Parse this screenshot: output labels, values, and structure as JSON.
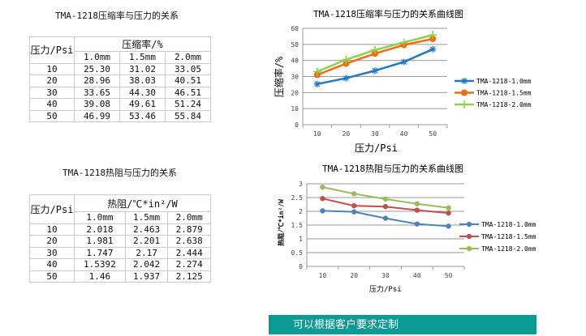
{
  "table1": {
    "title": "TMA-1218压缩率与压力的关系",
    "row_header": "压力/Psi",
    "group_header": "压缩率/%",
    "columns": [
      "1.0mm",
      "1.5mm",
      "2.0mm"
    ],
    "rows": [
      [
        "10",
        "25.30",
        "31.02",
        "33.05"
      ],
      [
        "20",
        "28.96",
        "38.03",
        "40.51"
      ],
      [
        "30",
        "33.65",
        "44.30",
        "46.51"
      ],
      [
        "40",
        "39.08",
        "49.61",
        "51.24"
      ],
      [
        "50",
        "46.99",
        "53.46",
        "55.84"
      ]
    ]
  },
  "table2": {
    "title": "TMA-1218热阻与压力的关系",
    "row_header": "压力/Psi",
    "group_header": "热阻/℃*in²/W",
    "columns": [
      "1.0mm",
      "1.5mm",
      "2.0mm"
    ],
    "rows": [
      [
        "10",
        "2.018",
        "2.463",
        "2.879"
      ],
      [
        "20",
        "1.981",
        "2.201",
        "2.638"
      ],
      [
        "30",
        "1.747",
        "2.17",
        "2.444"
      ],
      [
        "40",
        "1.5392",
        "2.042",
        "2.274"
      ],
      [
        "50",
        "1.46",
        "1.937",
        "2.125"
      ]
    ]
  },
  "chart_data": [
    {
      "type": "line",
      "title": "TMA-1218压缩率与压力的关系曲线图",
      "xlabel": "压力/Psi",
      "ylabel": "压缩率/%",
      "categories": [
        "10",
        "20",
        "30",
        "40",
        "50"
      ],
      "ylim": [
        0,
        60
      ],
      "yticks": [
        "0",
        "10",
        "20",
        "30",
        "40",
        "50",
        "60"
      ],
      "grid": true,
      "legend": "right",
      "series": [
        {
          "name": "TMA-1218-1.0mm",
          "values": [
            25.3,
            28.96,
            33.65,
            39.08,
            46.99
          ],
          "color": "#1f78c8",
          "marker": "asterisk"
        },
        {
          "name": "TMA-1218-1.5mm",
          "values": [
            31.02,
            38.03,
            44.3,
            49.61,
            53.46
          ],
          "color": "#f36c12",
          "marker": "circle"
        },
        {
          "name": "TMA-1218-2.0mm",
          "values": [
            33.05,
            40.51,
            46.51,
            51.24,
            55.84
          ],
          "color": "#8fd14f",
          "marker": "plus"
        }
      ]
    },
    {
      "type": "line",
      "title": "TMA-1218热阻与压力的关系曲线图",
      "xlabel": "压力/Psi",
      "ylabel": "热阻/℃*in²/W",
      "categories": [
        "10",
        "20",
        "30",
        "40",
        "50"
      ],
      "ylim": [
        0,
        3
      ],
      "yticks": [
        "0",
        "0.5",
        "1",
        "1.5",
        "2",
        "2.5",
        "3"
      ],
      "grid": true,
      "legend": "right",
      "series": [
        {
          "name": "TMA-1218-1.0mm",
          "values": [
            2.018,
            1.981,
            1.747,
            1.5392,
            1.46
          ],
          "color": "#4f81bd",
          "marker": "circle"
        },
        {
          "name": "TMA-1218-1.5mm",
          "values": [
            2.463,
            2.201,
            2.17,
            2.042,
            1.937
          ],
          "color": "#c0504d",
          "marker": "circle"
        },
        {
          "name": "TMA-1218-2.0mm",
          "values": [
            2.879,
            2.638,
            2.444,
            2.274,
            2.125
          ],
          "color": "#9bbb59",
          "marker": "circle"
        }
      ]
    }
  ],
  "banner": {
    "text": "可以根据客户要求定制"
  }
}
